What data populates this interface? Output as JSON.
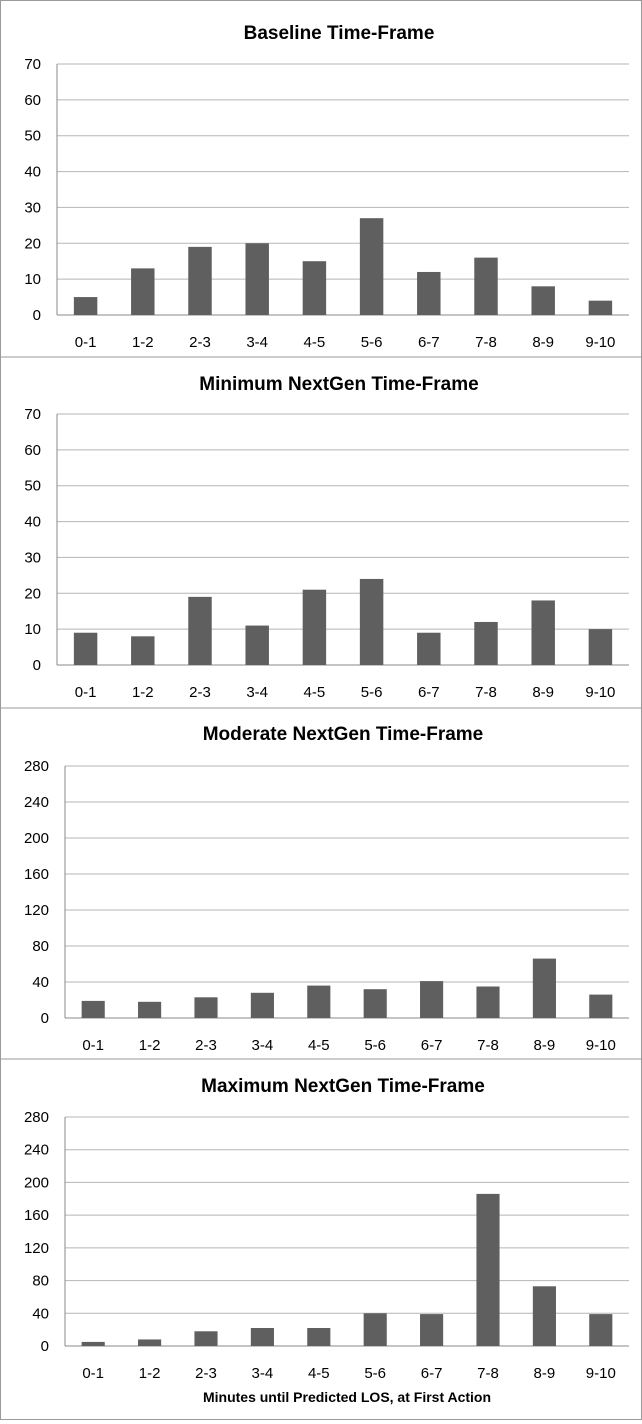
{
  "chart_data": [
    {
      "type": "bar",
      "title": "Baseline Time-Frame",
      "xlabel": "",
      "ylabel": "",
      "categories": [
        "0-1",
        "1-2",
        "2-3",
        "3-4",
        "4-5",
        "5-6",
        "6-7",
        "7-8",
        "8-9",
        "9-10"
      ],
      "values": [
        5,
        13,
        19,
        20,
        15,
        27,
        12,
        16,
        8,
        4
      ],
      "ylim": [
        0,
        70
      ],
      "yticks": [
        0,
        10,
        20,
        30,
        40,
        50,
        60,
        70
      ],
      "ytick_labels": [
        "0",
        "10",
        "20",
        "30",
        "40",
        "50",
        "60",
        "70"
      ],
      "grid": true,
      "bar_color": "#5f5f5f"
    },
    {
      "type": "bar",
      "title": "Minimum NextGen Time-Frame",
      "xlabel": "",
      "ylabel": "",
      "categories": [
        "0-1",
        "1-2",
        "2-3",
        "3-4",
        "4-5",
        "5-6",
        "6-7",
        "7-8",
        "8-9",
        "9-10"
      ],
      "values": [
        9,
        8,
        19,
        11,
        21,
        24,
        9,
        12,
        18,
        10
      ],
      "ylim": [
        0,
        70
      ],
      "yticks": [
        0,
        10,
        20,
        30,
        40,
        50,
        60,
        70
      ],
      "ytick_labels": [
        "0",
        "10",
        "20",
        "30",
        "40",
        "50",
        "60",
        "70"
      ],
      "grid": true,
      "bar_color": "#5f5f5f"
    },
    {
      "type": "bar",
      "title": "Moderate NextGen Time-Frame",
      "xlabel": "",
      "ylabel": "",
      "categories": [
        "0-1",
        "1-2",
        "2-3",
        "3-4",
        "4-5",
        "5-6",
        "6-7",
        "7-8",
        "8-9",
        "9-10"
      ],
      "values": [
        19,
        18,
        23,
        28,
        36,
        32,
        41,
        35,
        66,
        26
      ],
      "ylim": [
        0,
        280
      ],
      "yticks": [
        0,
        40,
        80,
        120,
        160,
        200,
        240,
        280
      ],
      "ytick_labels": [
        "0",
        "40",
        "80",
        "120",
        "160",
        "200",
        "240",
        "280"
      ],
      "grid": true,
      "bar_color": "#5f5f5f"
    },
    {
      "type": "bar",
      "title": "Maximum NextGen Time-Frame",
      "xlabel": "Minutes until Predicted LOS, at First Action",
      "ylabel": "",
      "categories": [
        "0-1",
        "1-2",
        "2-3",
        "3-4",
        "4-5",
        "5-6",
        "6-7",
        "7-8",
        "8-9",
        "9-10"
      ],
      "values": [
        5,
        8,
        18,
        22,
        22,
        40,
        39,
        186,
        73,
        39
      ],
      "ylim": [
        0,
        280
      ],
      "yticks": [
        0,
        40,
        80,
        120,
        160,
        200,
        240,
        280
      ],
      "ytick_labels": [
        "0",
        "40",
        "80",
        "120",
        "160",
        "200",
        "240",
        "280"
      ],
      "grid": true,
      "bar_color": "#5f5f5f"
    }
  ]
}
